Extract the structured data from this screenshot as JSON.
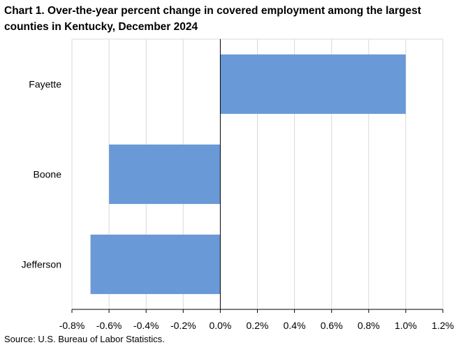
{
  "chart_data": {
    "type": "bar",
    "orientation": "horizontal",
    "title_lines": [
      "Chart 1. Over-the-year percent change in covered employment among the largest",
      "counties in Kentucky, December 2024"
    ],
    "categories": [
      "Fayette",
      "Boone",
      "Jefferson"
    ],
    "values": [
      1.0,
      -0.6,
      -0.7
    ],
    "xlim": [
      -0.8,
      1.2
    ],
    "x_ticks": [
      -0.8,
      -0.6,
      -0.4,
      -0.2,
      0.0,
      0.2,
      0.4,
      0.6,
      0.8,
      1.0,
      1.2
    ],
    "x_tick_labels": [
      "-0.8%",
      "-0.6%",
      "-0.4%",
      "-0.2%",
      "0.0%",
      "0.2%",
      "0.4%",
      "0.6%",
      "0.8%",
      "1.0%",
      "1.2%"
    ],
    "grid": true,
    "legend": false,
    "bar_color": "#6a99d7",
    "grid_color": "#d9d9d9",
    "source": "Source: U.S. Bureau of Labor Statistics."
  }
}
